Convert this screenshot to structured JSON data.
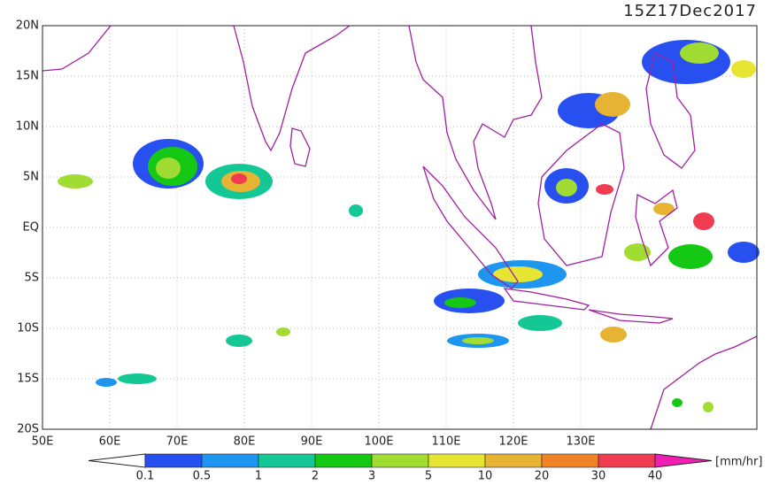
{
  "title": "15Z17Dec2017",
  "lat_labels": [
    "20N",
    "15N",
    "10N",
    "5N",
    "EQ",
    "5S",
    "10S",
    "15S",
    "20S"
  ],
  "lon_labels": [
    "50E",
    "60E",
    "70E",
    "80E",
    "90E",
    "100E",
    "110E",
    "120E",
    "130E"
  ],
  "colorbar": {
    "levels": [
      0.1,
      0.5,
      1,
      2,
      3,
      5,
      10,
      20,
      30,
      40
    ],
    "colors": [
      "#2850f0",
      "#1e96f0",
      "#14c896",
      "#14c814",
      "#a0dc32",
      "#e6e632",
      "#e6b432",
      "#f08228",
      "#f03c50"
    ],
    "under_color": "#ffffff",
    "over_color": "#f01eb4",
    "unit": "[mm/hr]"
  }
}
